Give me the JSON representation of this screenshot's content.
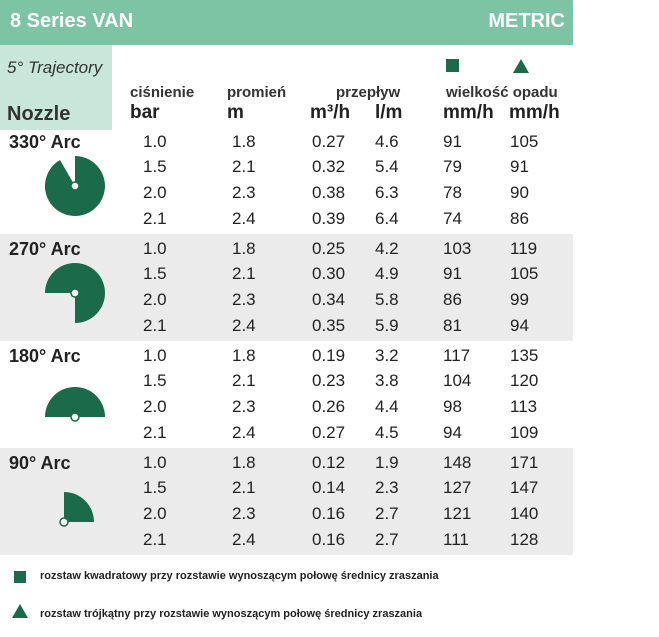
{
  "banner": {
    "title": "8 Series VAN",
    "metric": "METRIC"
  },
  "header": {
    "trajectory": "5° Trajectory",
    "nozzle": "Nozzle",
    "pressure_label": "ciśnienie",
    "radius_label": "promień",
    "flow_label": "przepływ",
    "precip_label": "wielkość opadu",
    "units": {
      "pressure": "bar",
      "radius": "m",
      "flow_m3": "m³/h",
      "flow_lm": "l/m",
      "precip_sq": "mm/h",
      "precip_tri": "mm/h"
    },
    "icons": [
      "square-icon",
      "triangle-icon"
    ],
    "accent_color": "#7cc4a4",
    "icon_color": "#1b6a4a"
  },
  "sections": [
    {
      "label": "330° Arc",
      "icon": "arc-330-icon",
      "rows": [
        [
          "1.0",
          "1.8",
          "0.27",
          "4.6",
          "91",
          "105"
        ],
        [
          "1.5",
          "2.1",
          "0.32",
          "5.4",
          "79",
          "91"
        ],
        [
          "2.0",
          "2.3",
          "0.38",
          "6.3",
          "78",
          "90"
        ],
        [
          "2.1",
          "2.4",
          "0.39",
          "6.4",
          "74",
          "86"
        ]
      ]
    },
    {
      "label": "270° Arc",
      "icon": "arc-270-icon",
      "rows": [
        [
          "1.0",
          "1.8",
          "0.25",
          "4.2",
          "103",
          "119"
        ],
        [
          "1.5",
          "2.1",
          "0.30",
          "4.9",
          "91",
          "105"
        ],
        [
          "2.0",
          "2.3",
          "0.34",
          "5.8",
          "86",
          "99"
        ],
        [
          "2.1",
          "2.4",
          "0.35",
          "5.9",
          "81",
          "94"
        ]
      ]
    },
    {
      "label": "180° Arc",
      "icon": "arc-180-icon",
      "rows": [
        [
          "1.0",
          "1.8",
          "0.19",
          "3.2",
          "117",
          "135"
        ],
        [
          "1.5",
          "2.1",
          "0.23",
          "3.8",
          "104",
          "120"
        ],
        [
          "2.0",
          "2.3",
          "0.26",
          "4.4",
          "98",
          "113"
        ],
        [
          "2.1",
          "2.4",
          "0.27",
          "4.5",
          "94",
          "109"
        ]
      ]
    },
    {
      "label": "90° Arc",
      "icon": "arc-90-icon",
      "rows": [
        [
          "1.0",
          "1.8",
          "0.12",
          "1.9",
          "148",
          "171"
        ],
        [
          "1.5",
          "2.1",
          "0.14",
          "2.3",
          "127",
          "147"
        ],
        [
          "2.0",
          "2.3",
          "0.16",
          "2.7",
          "121",
          "140"
        ],
        [
          "2.1",
          "2.4",
          "0.16",
          "2.7",
          "111",
          "128"
        ]
      ]
    }
  ],
  "legend": {
    "square_text": "rozstaw kwadratowy przy rozstawie wynoszącym połowę średnicy zraszania",
    "triangle_text": "rozstaw trójkątny przy rozstawie wynoszącym połowę średnicy zraszania"
  }
}
